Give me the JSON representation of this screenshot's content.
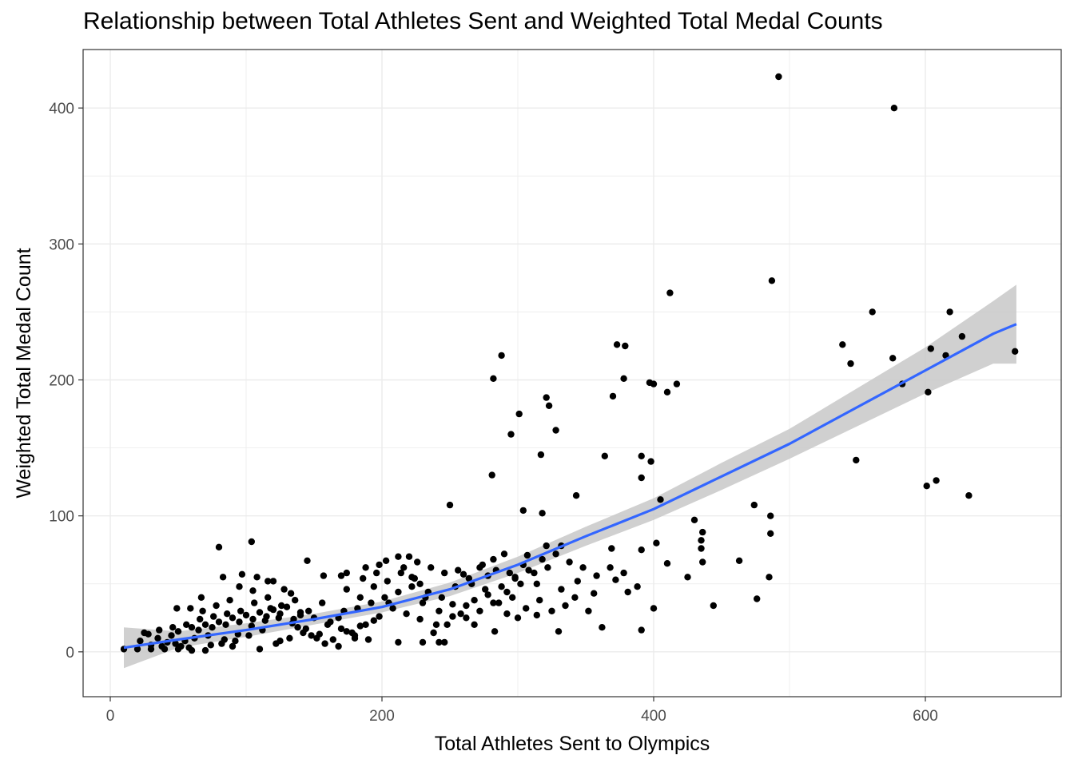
{
  "chart_data": {
    "type": "scatter",
    "title": "Relationship between Total Athletes Sent and Weighted Total Medal Counts",
    "xlabel": "Total Athletes Sent to Olympics",
    "ylabel": "Weighted Total Medal Count",
    "xlim": [
      -20,
      700
    ],
    "ylim": [
      -33,
      443
    ],
    "x_ticks": [
      0,
      200,
      400,
      600
    ],
    "y_ticks": [
      0,
      100,
      200,
      300,
      400
    ],
    "grid": true,
    "legend": "none",
    "colors": {
      "points": "#000000",
      "smooth_line": "#3366ff",
      "confidence_band": "#c8c8c8",
      "grid": "#ebebeb",
      "panel_border": "#333333"
    },
    "points": [
      [
        492,
        423
      ],
      [
        577,
        400
      ],
      [
        487,
        273
      ],
      [
        412,
        264
      ],
      [
        561,
        250
      ],
      [
        618,
        250
      ],
      [
        627,
        232
      ],
      [
        379,
        225
      ],
      [
        373,
        226
      ],
      [
        539,
        226
      ],
      [
        576,
        216
      ],
      [
        545,
        212
      ],
      [
        288,
        218
      ],
      [
        604,
        223
      ],
      [
        615,
        218
      ],
      [
        666,
        221
      ],
      [
        282,
        201
      ],
      [
        378,
        201
      ],
      [
        397,
        198
      ],
      [
        400,
        197
      ],
      [
        417,
        197
      ],
      [
        410,
        191
      ],
      [
        583,
        197
      ],
      [
        602,
        191
      ],
      [
        370,
        188
      ],
      [
        321,
        187
      ],
      [
        323,
        181
      ],
      [
        301,
        175
      ],
      [
        295,
        160
      ],
      [
        328,
        163
      ],
      [
        364,
        144
      ],
      [
        317,
        145
      ],
      [
        391,
        144
      ],
      [
        398,
        140
      ],
      [
        549,
        141
      ],
      [
        281,
        130
      ],
      [
        391,
        128
      ],
      [
        608,
        126
      ],
      [
        601,
        122
      ],
      [
        632,
        115
      ],
      [
        343,
        115
      ],
      [
        405,
        112
      ],
      [
        250,
        108
      ],
      [
        304,
        104
      ],
      [
        318,
        102
      ],
      [
        474,
        108
      ],
      [
        486,
        100
      ],
      [
        430,
        97
      ],
      [
        436,
        88
      ],
      [
        435,
        82
      ],
      [
        486,
        87
      ],
      [
        435,
        76
      ],
      [
        402,
        80
      ],
      [
        391,
        75
      ],
      [
        369,
        76
      ],
      [
        332,
        78
      ],
      [
        321,
        78
      ],
      [
        282,
        68
      ],
      [
        307,
        71
      ],
      [
        290,
        72
      ],
      [
        104,
        81
      ],
      [
        80,
        77
      ],
      [
        145,
        67
      ],
      [
        203,
        67
      ],
      [
        212,
        70
      ],
      [
        220,
        70
      ],
      [
        198,
        64
      ],
      [
        188,
        62
      ],
      [
        174,
        58
      ],
      [
        157,
        56
      ],
      [
        97,
        57
      ],
      [
        83,
        55
      ],
      [
        108,
        55
      ],
      [
        116,
        52
      ],
      [
        120,
        52
      ],
      [
        133,
        43
      ],
      [
        105,
        45
      ],
      [
        95,
        48
      ],
      [
        67,
        40
      ],
      [
        59,
        32
      ],
      [
        49,
        32
      ],
      [
        222,
        55
      ],
      [
        228,
        50
      ],
      [
        246,
        58
      ],
      [
        260,
        57
      ],
      [
        272,
        62
      ],
      [
        278,
        56
      ],
      [
        298,
        55
      ],
      [
        314,
        50
      ],
      [
        344,
        52
      ],
      [
        356,
        43
      ],
      [
        372,
        53
      ],
      [
        381,
        44
      ],
      [
        362,
        18
      ],
      [
        391,
        16
      ],
      [
        400,
        32
      ],
      [
        444,
        34
      ],
      [
        476,
        39
      ],
      [
        485,
        55
      ],
      [
        463,
        67
      ],
      [
        436,
        66
      ],
      [
        410,
        65
      ],
      [
        425,
        55
      ],
      [
        230,
        7
      ],
      [
        242,
        7
      ],
      [
        246,
        7
      ],
      [
        212,
        7
      ],
      [
        283,
        15
      ],
      [
        314,
        27
      ],
      [
        330,
        15
      ],
      [
        268,
        20
      ],
      [
        262,
        25
      ],
      [
        252,
        35
      ],
      [
        240,
        20
      ],
      [
        230,
        36
      ],
      [
        205,
        36
      ],
      [
        180,
        10
      ],
      [
        168,
        25
      ],
      [
        152,
        10
      ],
      [
        140,
        27
      ],
      [
        125,
        8
      ],
      [
        110,
        2
      ],
      [
        90,
        4
      ],
      [
        70,
        1
      ],
      [
        60,
        1
      ],
      [
        50,
        2
      ],
      [
        40,
        2
      ],
      [
        30,
        2
      ],
      [
        20,
        2
      ],
      [
        10,
        2
      ],
      [
        25,
        14
      ],
      [
        35,
        10
      ],
      [
        45,
        12
      ],
      [
        55,
        8
      ],
      [
        65,
        16
      ],
      [
        75,
        18
      ],
      [
        85,
        20
      ],
      [
        95,
        22
      ],
      [
        105,
        24
      ],
      [
        115,
        26
      ],
      [
        125,
        28
      ],
      [
        135,
        24
      ],
      [
        30,
        5
      ],
      [
        42,
        7
      ],
      [
        52,
        4
      ],
      [
        62,
        10
      ],
      [
        72,
        12
      ],
      [
        82,
        6
      ],
      [
        92,
        8
      ],
      [
        102,
        12
      ],
      [
        112,
        16
      ],
      [
        122,
        6
      ],
      [
        132,
        10
      ],
      [
        142,
        14
      ],
      [
        162,
        22
      ],
      [
        172,
        30
      ],
      [
        182,
        32
      ],
      [
        192,
        36
      ],
      [
        202,
        40
      ],
      [
        212,
        44
      ],
      [
        222,
        48
      ],
      [
        232,
        40
      ],
      [
        242,
        30
      ],
      [
        252,
        26
      ],
      [
        262,
        34
      ],
      [
        272,
        30
      ],
      [
        282,
        36
      ],
      [
        292,
        44
      ],
      [
        302,
        50
      ],
      [
        312,
        58
      ],
      [
        322,
        62
      ],
      [
        332,
        46
      ],
      [
        342,
        40
      ],
      [
        352,
        30
      ],
      [
        292,
        28
      ],
      [
        300,
        25
      ],
      [
        306,
        32
      ],
      [
        316,
        38
      ],
      [
        325,
        30
      ],
      [
        335,
        34
      ],
      [
        174,
        46
      ],
      [
        186,
        54
      ],
      [
        196,
        58
      ],
      [
        216,
        62
      ],
      [
        226,
        66
      ],
      [
        236,
        62
      ],
      [
        256,
        60
      ],
      [
        266,
        50
      ],
      [
        276,
        46
      ],
      [
        286,
        36
      ],
      [
        296,
        40
      ],
      [
        156,
        36
      ],
      [
        146,
        30
      ],
      [
        136,
        38
      ],
      [
        126,
        34
      ],
      [
        116,
        40
      ],
      [
        106,
        36
      ],
      [
        96,
        30
      ],
      [
        86,
        28
      ],
      [
        76,
        26
      ],
      [
        66,
        24
      ],
      [
        56,
        20
      ],
      [
        46,
        18
      ],
      [
        36,
        16
      ],
      [
        28,
        13
      ],
      [
        68,
        30
      ],
      [
        78,
        34
      ],
      [
        88,
        38
      ],
      [
        118,
        32
      ],
      [
        128,
        46
      ],
      [
        138,
        18
      ],
      [
        148,
        12
      ],
      [
        158,
        6
      ],
      [
        168,
        4
      ],
      [
        178,
        14
      ],
      [
        188,
        20
      ],
      [
        198,
        26
      ],
      [
        208,
        32
      ],
      [
        218,
        28
      ],
      [
        228,
        24
      ],
      [
        238,
        14
      ],
      [
        248,
        20
      ],
      [
        258,
        28
      ],
      [
        268,
        38
      ],
      [
        278,
        42
      ],
      [
        288,
        48
      ],
      [
        298,
        54
      ],
      [
        308,
        60
      ],
      [
        318,
        68
      ],
      [
        328,
        72
      ],
      [
        338,
        66
      ],
      [
        348,
        62
      ],
      [
        358,
        56
      ],
      [
        368,
        62
      ],
      [
        378,
        58
      ],
      [
        388,
        48
      ],
      [
        170,
        56
      ],
      [
        184,
        40
      ],
      [
        194,
        48
      ],
      [
        204,
        52
      ],
      [
        214,
        58
      ],
      [
        224,
        54
      ],
      [
        234,
        44
      ],
      [
        244,
        40
      ],
      [
        254,
        48
      ],
      [
        264,
        54
      ],
      [
        274,
        64
      ],
      [
        284,
        60
      ],
      [
        294,
        58
      ],
      [
        304,
        64
      ],
      [
        22,
        8
      ],
      [
        38,
        4
      ],
      [
        48,
        6
      ],
      [
        58,
        3
      ],
      [
        74,
        5
      ],
      [
        84,
        9
      ],
      [
        94,
        13
      ],
      [
        104,
        19
      ],
      [
        114,
        23
      ],
      [
        124,
        25
      ],
      [
        134,
        21
      ],
      [
        144,
        17
      ],
      [
        154,
        13
      ],
      [
        164,
        9
      ],
      [
        174,
        15
      ],
      [
        184,
        19
      ],
      [
        194,
        23
      ],
      [
        50,
        15
      ],
      [
        60,
        18
      ],
      [
        70,
        20
      ],
      [
        80,
        22
      ],
      [
        90,
        25
      ],
      [
        100,
        27
      ],
      [
        110,
        29
      ],
      [
        120,
        31
      ],
      [
        130,
        33
      ],
      [
        140,
        29
      ],
      [
        150,
        25
      ],
      [
        160,
        20
      ],
      [
        170,
        17
      ],
      [
        180,
        12
      ],
      [
        190,
        9
      ]
    ],
    "smooth_line": [
      [
        10,
        3
      ],
      [
        50,
        9
      ],
      [
        100,
        16
      ],
      [
        150,
        24
      ],
      [
        200,
        33
      ],
      [
        250,
        46
      ],
      [
        300,
        64
      ],
      [
        350,
        85
      ],
      [
        400,
        105
      ],
      [
        450,
        129
      ],
      [
        500,
        153
      ],
      [
        550,
        180
      ],
      [
        600,
        207
      ],
      [
        650,
        234
      ],
      [
        667,
        241
      ]
    ],
    "confidence_band": [
      [
        10,
        -12,
        18
      ],
      [
        50,
        3,
        15
      ],
      [
        100,
        11,
        21
      ],
      [
        150,
        20,
        28
      ],
      [
        200,
        29,
        37
      ],
      [
        250,
        41,
        51
      ],
      [
        300,
        58,
        70
      ],
      [
        350,
        78,
        92
      ],
      [
        400,
        97,
        113
      ],
      [
        450,
        119,
        139
      ],
      [
        500,
        142,
        164
      ],
      [
        550,
        166,
        194
      ],
      [
        600,
        190,
        224
      ],
      [
        650,
        212,
        258
      ],
      [
        667,
        212,
        270
      ]
    ]
  }
}
